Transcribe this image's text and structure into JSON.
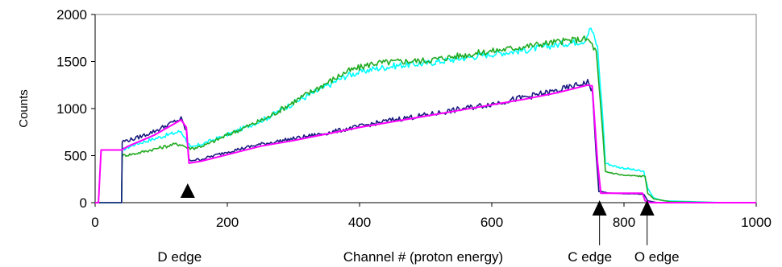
{
  "chart_data": {
    "type": "line",
    "title": "",
    "xlabel": "Channel # (proton energy)",
    "ylabel": "Counts",
    "xlim": [
      0,
      1000
    ],
    "ylim": [
      0,
      2000
    ],
    "xticks": [
      "0",
      "200",
      "400",
      "600",
      "800",
      "1000"
    ],
    "yticks": [
      "0",
      "500",
      "1000",
      "1500",
      "2000"
    ],
    "grid": false,
    "legend": "none",
    "series": [
      {
        "color": "#00ffff",
        "points": [
          [
            0,
            0
          ],
          [
            35,
            0
          ],
          [
            40,
            0
          ],
          [
            41,
            560
          ],
          [
            60,
            620
          ],
          [
            90,
            680
          ],
          [
            120,
            740
          ],
          [
            130,
            760
          ],
          [
            140,
            640
          ],
          [
            145,
            580
          ],
          [
            160,
            620
          ],
          [
            200,
            720
          ],
          [
            260,
            900
          ],
          [
            300,
            1060
          ],
          [
            340,
            1200
          ],
          [
            380,
            1350
          ],
          [
            420,
            1420
          ],
          [
            460,
            1460
          ],
          [
            500,
            1480
          ],
          [
            550,
            1530
          ],
          [
            600,
            1580
          ],
          [
            650,
            1620
          ],
          [
            700,
            1680
          ],
          [
            740,
            1720
          ],
          [
            750,
            1860
          ],
          [
            760,
            1650
          ],
          [
            768,
            900
          ],
          [
            772,
            420
          ],
          [
            790,
            380
          ],
          [
            830,
            330
          ],
          [
            836,
            150
          ],
          [
            845,
            50
          ],
          [
            860,
            20
          ],
          [
            950,
            0
          ],
          [
            1000,
            0
          ]
        ]
      },
      {
        "color": "#22aa22",
        "points": [
          [
            0,
            0
          ],
          [
            35,
            0
          ],
          [
            40,
            0
          ],
          [
            41,
            500
          ],
          [
            60,
            520
          ],
          [
            90,
            570
          ],
          [
            120,
            620
          ],
          [
            130,
            620
          ],
          [
            140,
            580
          ],
          [
            150,
            580
          ],
          [
            170,
            620
          ],
          [
            200,
            720
          ],
          [
            260,
            900
          ],
          [
            300,
            1070
          ],
          [
            340,
            1230
          ],
          [
            380,
            1390
          ],
          [
            420,
            1480
          ],
          [
            460,
            1500
          ],
          [
            500,
            1510
          ],
          [
            550,
            1560
          ],
          [
            600,
            1610
          ],
          [
            650,
            1660
          ],
          [
            700,
            1710
          ],
          [
            740,
            1740
          ],
          [
            748,
            1720
          ],
          [
            758,
            1600
          ],
          [
            766,
            900
          ],
          [
            772,
            330
          ],
          [
            800,
            290
          ],
          [
            832,
            280
          ],
          [
            836,
            100
          ],
          [
            845,
            40
          ],
          [
            870,
            10
          ],
          [
            950,
            0
          ],
          [
            1000,
            0
          ]
        ]
      },
      {
        "color": "#1a1a80",
        "points": [
          [
            0,
            0
          ],
          [
            35,
            0
          ],
          [
            40,
            0
          ],
          [
            41,
            650
          ],
          [
            60,
            680
          ],
          [
            90,
            760
          ],
          [
            120,
            860
          ],
          [
            130,
            890
          ],
          [
            138,
            760
          ],
          [
            142,
            450
          ],
          [
            160,
            460
          ],
          [
            200,
            540
          ],
          [
            250,
            620
          ],
          [
            300,
            680
          ],
          [
            350,
            740
          ],
          [
            400,
            810
          ],
          [
            450,
            880
          ],
          [
            500,
            930
          ],
          [
            550,
            990
          ],
          [
            600,
            1050
          ],
          [
            650,
            1120
          ],
          [
            700,
            1190
          ],
          [
            745,
            1280
          ],
          [
            752,
            1200
          ],
          [
            758,
            500
          ],
          [
            762,
            120
          ],
          [
            780,
            100
          ],
          [
            830,
            90
          ],
          [
            836,
            20
          ],
          [
            850,
            0
          ],
          [
            1000,
            0
          ]
        ]
      },
      {
        "color": "#ff00ff",
        "points": [
          [
            0,
            0
          ],
          [
            5,
            0
          ],
          [
            9,
            560
          ],
          [
            30,
            560
          ],
          [
            38,
            560
          ],
          [
            40,
            560
          ],
          [
            50,
            600
          ],
          [
            90,
            720
          ],
          [
            120,
            840
          ],
          [
            130,
            880
          ],
          [
            138,
            800
          ],
          [
            142,
            420
          ],
          [
            160,
            440
          ],
          [
            200,
            510
          ],
          [
            250,
            600
          ],
          [
            300,
            660
          ],
          [
            350,
            730
          ],
          [
            400,
            800
          ],
          [
            450,
            860
          ],
          [
            500,
            920
          ],
          [
            550,
            980
          ],
          [
            600,
            1040
          ],
          [
            650,
            1100
          ],
          [
            700,
            1170
          ],
          [
            745,
            1250
          ],
          [
            752,
            1240
          ],
          [
            760,
            430
          ],
          [
            765,
            100
          ],
          [
            780,
            100
          ],
          [
            828,
            100
          ],
          [
            832,
            20
          ],
          [
            840,
            0
          ],
          [
            1000,
            0
          ]
        ]
      }
    ],
    "annotations": [
      {
        "label": "D edge",
        "x": 140,
        "marker": "triangle"
      },
      {
        "label": "C edge",
        "x": 763,
        "marker": "arrow"
      },
      {
        "label": "O edge",
        "x": 835,
        "marker": "arrow"
      }
    ]
  }
}
